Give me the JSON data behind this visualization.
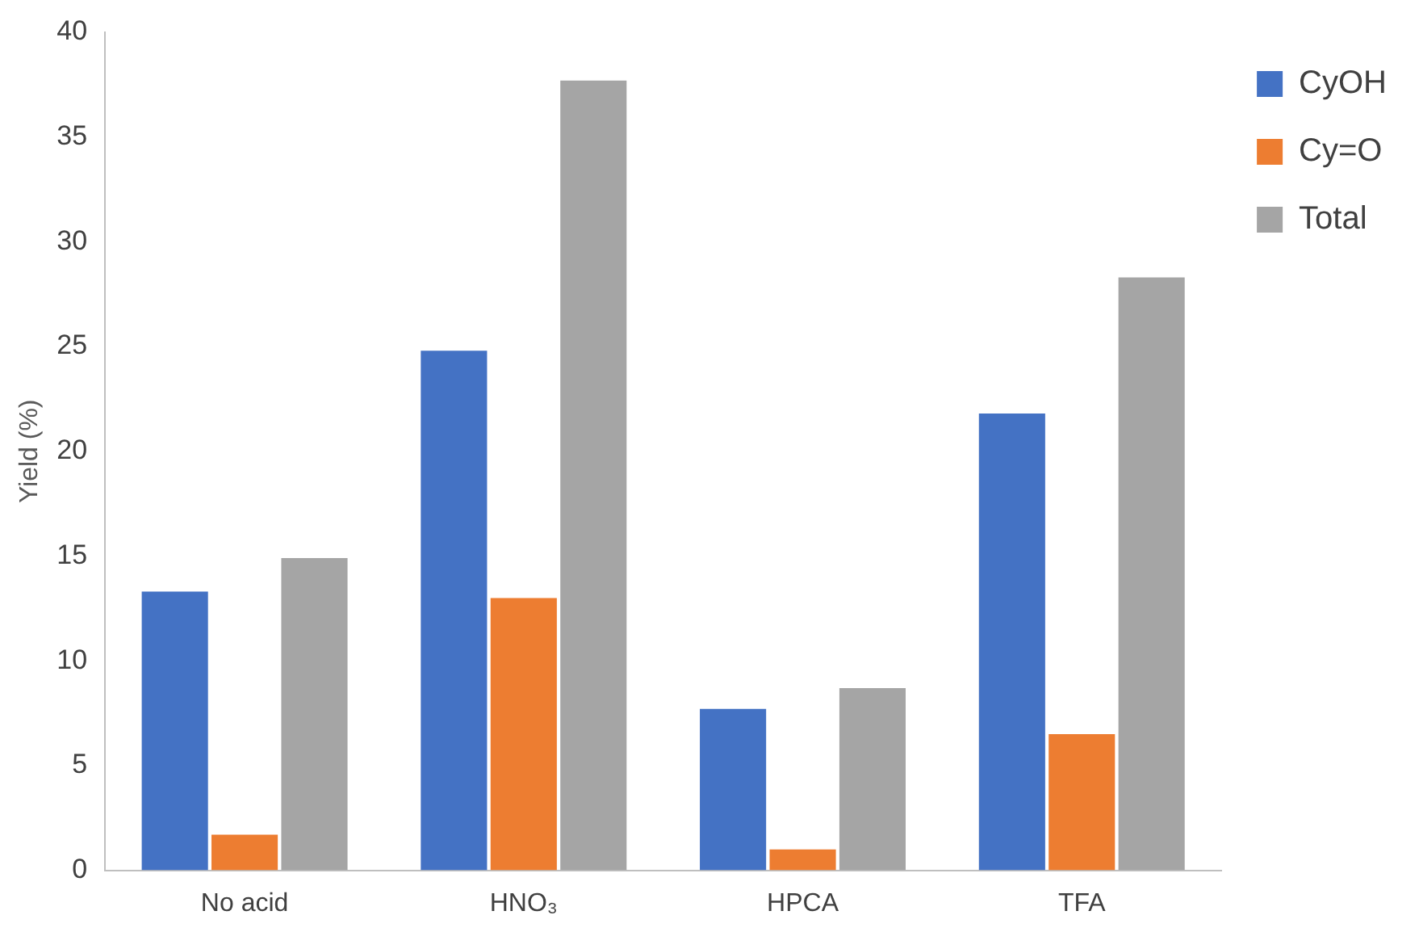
{
  "chart_data": {
    "type": "bar",
    "ylabel": "Yield (%)",
    "categories": [
      "No acid",
      "HNO₃",
      "HPCA",
      "TFA"
    ],
    "series": [
      {
        "name": "CyOH",
        "color": "#4472c4",
        "values": [
          13.3,
          24.8,
          7.7,
          21.8
        ]
      },
      {
        "name": "Cy=O",
        "color": "#ed7d31",
        "values": [
          1.7,
          13.0,
          1.0,
          6.5
        ]
      },
      {
        "name": "Total",
        "color": "#a5a5a5",
        "values": [
          14.9,
          37.7,
          8.7,
          28.3
        ]
      }
    ],
    "ylim": [
      0,
      40
    ],
    "yticks": [
      0,
      5,
      10,
      15,
      20,
      25,
      30,
      35,
      40
    ],
    "legend": "top right"
  }
}
